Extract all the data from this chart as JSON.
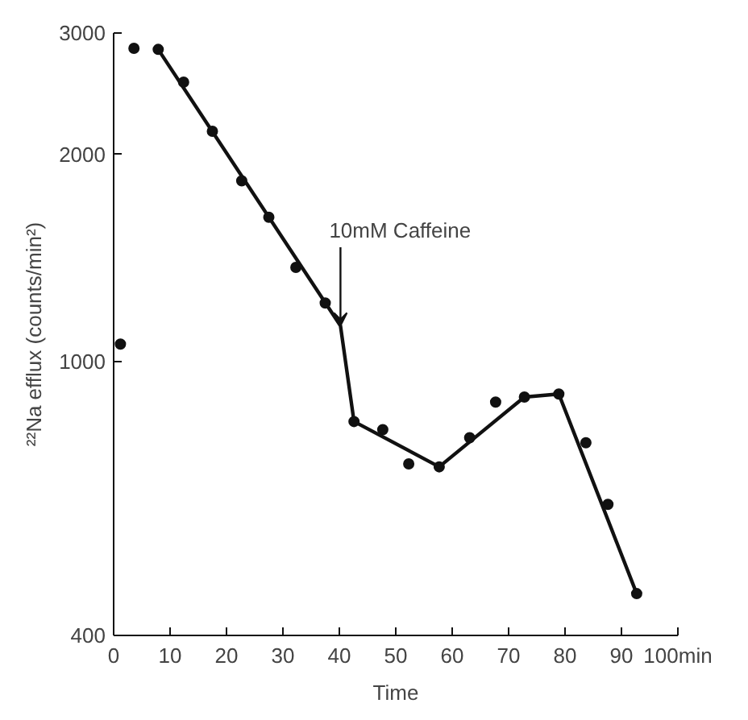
{
  "chart_data": {
    "type": "line",
    "xlabel": "Time",
    "ylabel": "²²Na efflux (counts/min²)",
    "log": "y",
    "grid": false,
    "xlim": [
      0,
      100
    ],
    "xticks": [
      0,
      10,
      20,
      30,
      40,
      50,
      60,
      70,
      80,
      90,
      {
        "value": 100,
        "label": "100min"
      }
    ],
    "ylim": [
      400,
      3000
    ],
    "yticks": [
      400,
      1000,
      2000,
      3000
    ],
    "annotations": [
      {
        "text": "10mM Caffeine",
        "x": 40.2,
        "y": 1127
      }
    ],
    "series": [
      {
        "type": "scatter",
        "marker": "circle",
        "color": "#111111",
        "x": [
          1.2,
          3.6,
          7.9,
          12.4,
          17.5,
          22.7,
          27.5,
          32.3,
          37.5,
          42.6,
          47.7,
          52.3,
          57.7,
          63.1,
          67.7,
          72.8,
          78.9,
          83.7,
          87.6,
          92.7
        ],
        "values": [
          1060,
          2850,
          2840,
          2545,
          2160,
          1830,
          1620,
          1370,
          1216,
          818,
          796,
          710,
          703,
          775,
          873,
          888,
          897,
          762,
          620,
          460
        ]
      },
      {
        "color": "#111111",
        "x": [
          7.9,
          40.2,
          42.6,
          57.7,
          72.8,
          78.9,
          92.7
        ],
        "values": [
          2840,
          1127,
          818,
          703,
          888,
          897,
          460
        ]
      }
    ]
  }
}
